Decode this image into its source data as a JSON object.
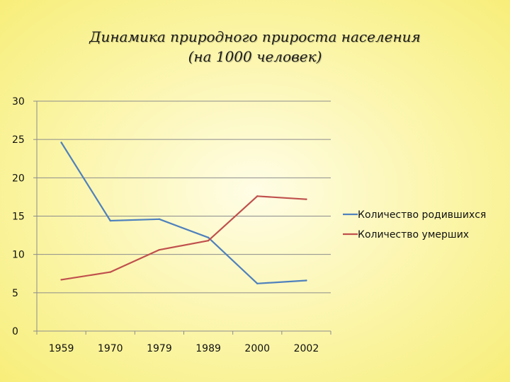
{
  "title_line1": "Динамика природного прироста населения",
  "title_line2": "(на 1000 человек)",
  "chart_data": {
    "type": "line",
    "categories": [
      "1959",
      "1970",
      "1979",
      "1989",
      "2000",
      "2002"
    ],
    "series": [
      {
        "name": "Количество родившихся",
        "color": "#4f81bd",
        "values": [
          24.6,
          14.4,
          14.6,
          12.2,
          6.2,
          6.6
        ]
      },
      {
        "name": "Количество умерших",
        "color": "#c0504d",
        "values": [
          6.7,
          7.7,
          10.6,
          11.8,
          17.6,
          17.2
        ]
      }
    ],
    "ylim": [
      0,
      30
    ],
    "yticks": [
      0,
      5,
      10,
      15,
      20,
      25,
      30
    ],
    "grid": true,
    "legend_position": "right"
  }
}
